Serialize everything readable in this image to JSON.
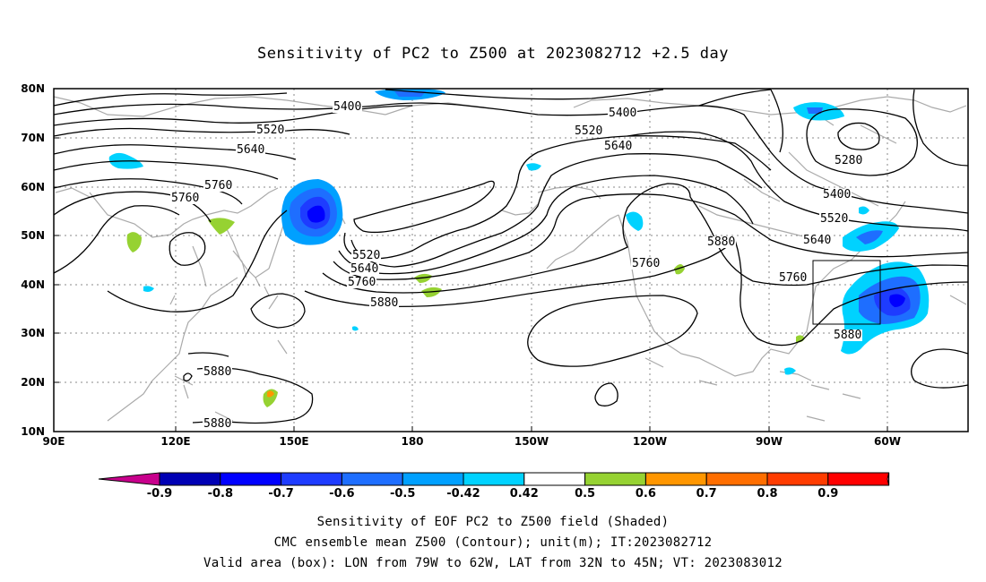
{
  "title": "Sensitivity of PC2 to Z500 at 2023082712 +2.5 day",
  "lat_labels": [
    "80N",
    "70N",
    "60N",
    "50N",
    "40N",
    "30N",
    "20N",
    "10N"
  ],
  "lon_labels": [
    "90E",
    "120E",
    "150E",
    "180",
    "150W",
    "120W",
    "90W",
    "60W"
  ],
  "contour_labels": [
    {
      "text": "5400"
    },
    {
      "text": "5400"
    },
    {
      "text": "5520"
    },
    {
      "text": "5520"
    },
    {
      "text": "5640"
    },
    {
      "text": "5640"
    },
    {
      "text": "5760"
    },
    {
      "text": "5760"
    },
    {
      "text": "5520"
    },
    {
      "text": "5640"
    },
    {
      "text": "5760"
    },
    {
      "text": "5880"
    },
    {
      "text": "5760"
    },
    {
      "text": "5880"
    },
    {
      "text": "5760"
    },
    {
      "text": "5640"
    },
    {
      "text": "5520"
    },
    {
      "text": "5400"
    },
    {
      "text": "5280"
    },
    {
      "text": "5880"
    },
    {
      "text": "5880"
    },
    {
      "text": "5880"
    }
  ],
  "colorbar": {
    "labels": [
      "-0.9",
      "-0.8",
      "-0.7",
      "-0.6",
      "-0.5",
      "-0.42",
      "0.42",
      "0.5",
      "0.6",
      "0.7",
      "0.8",
      "0.9"
    ],
    "colors": [
      "#c8008c",
      "#0000b4",
      "#0000ff",
      "#1e3cff",
      "#1e6eff",
      "#00a0ff",
      "#00d2ff",
      "#ffffff",
      "#96d232",
      "#ff9600",
      "#ff6e00",
      "#ff3c00",
      "#ff0000",
      "#ff96c8"
    ]
  },
  "captions": {
    "line1": "Sensitivity of EOF PC2 to Z500 field (Shaded)",
    "line2": "CMC ensemble mean Z500 (Contour); unit(m); IT:2023082712",
    "line3": "Valid area (box): LON from 79W to 62W, LAT from 32N to 45N; VT: 2023083012"
  },
  "colors": {
    "coast": "#aaaaaa",
    "contour": "#000000",
    "grid": "#888888"
  }
}
